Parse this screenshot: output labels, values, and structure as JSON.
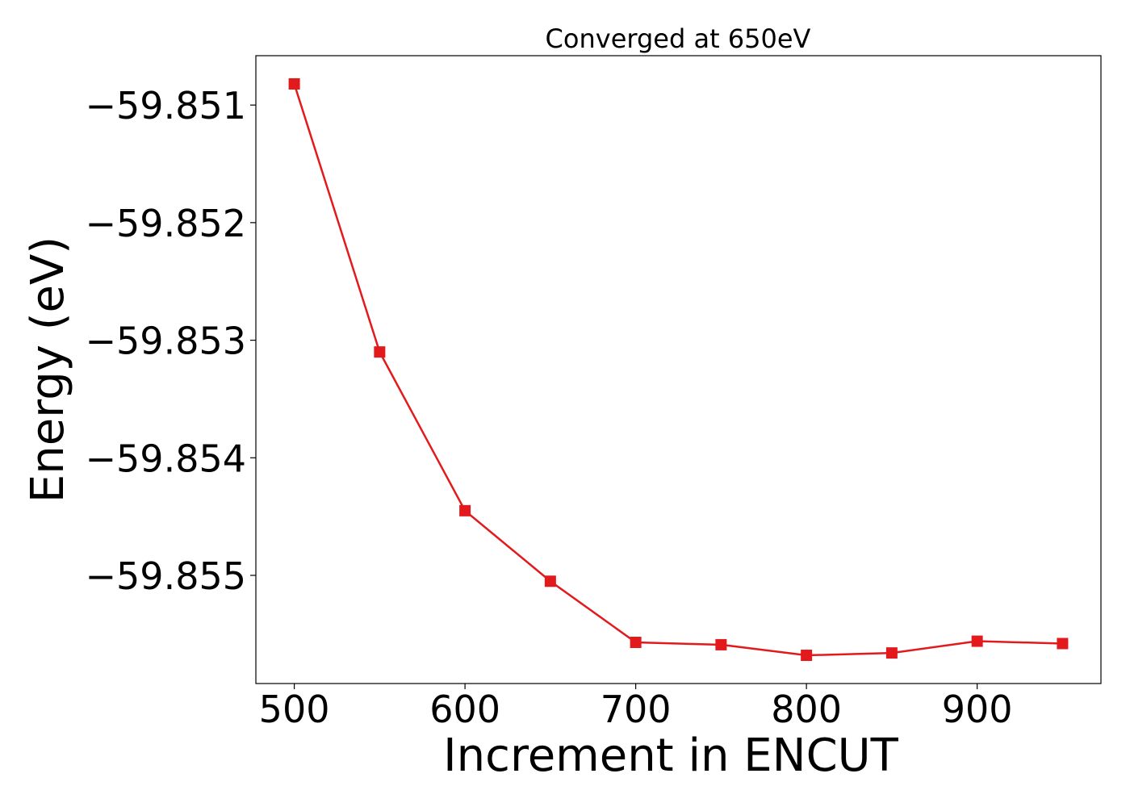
{
  "chart_data": {
    "type": "line",
    "title": "Converged at 650eV",
    "xlabel": "Increment in ENCUT",
    "ylabel": "Energy (eV)",
    "x": [
      500,
      550,
      600,
      650,
      700,
      750,
      800,
      850,
      900,
      950
    ],
    "series": [
      {
        "values": [
          -59.85082,
          -59.8531,
          -59.85445,
          -59.85505,
          -59.85557,
          -59.85559,
          -59.85568,
          -59.85566,
          -59.85556,
          -59.85558
        ],
        "color": "#e31a1c",
        "marker": "square"
      }
    ],
    "xticks": [
      500,
      600,
      700,
      800,
      900
    ],
    "xtick_labels": [
      "500",
      "600",
      "700",
      "800",
      "900"
    ],
    "yticks": [
      -59.851,
      -59.852,
      -59.853,
      -59.854,
      -59.855
    ],
    "ytick_labels": [
      "−59.851",
      "−59.852",
      "−59.853",
      "−59.854",
      "−59.855"
    ],
    "xlim": [
      477.5,
      972.5
    ],
    "ylim": [
      -59.85592,
      -59.85058
    ],
    "grid": false,
    "legend": "none"
  }
}
